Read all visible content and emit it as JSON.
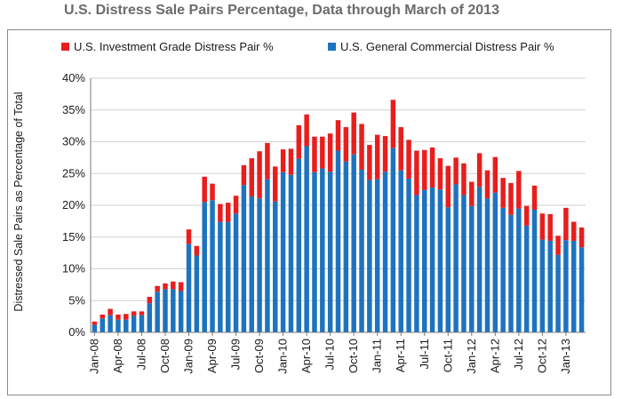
{
  "chart_data": {
    "type": "bar",
    "stacked": true,
    "title": "U.S. Distress Sale Pairs Percentage, Data through March of 2013",
    "ylabel": "Distressed Sale Pairs as Percentage of Total",
    "xlabel": "",
    "ylim": [
      0,
      40
    ],
    "yticks": [
      "0%",
      "5%",
      "10%",
      "15%",
      "20%",
      "25%",
      "30%",
      "35%",
      "40%"
    ],
    "xtick_labels": [
      "Jan-08",
      "Apr-08",
      "Jul-08",
      "Oct-08",
      "Jan-09",
      "Apr-09",
      "Jul-09",
      "Oct-09",
      "Jan-10",
      "Apr-10",
      "Jul-10",
      "Oct-10",
      "Jan-11",
      "Apr-11",
      "Jul-11",
      "Oct-11",
      "Jan-12",
      "Apr-12",
      "Jul-12",
      "Oct-12",
      "Jan-13"
    ],
    "grid": true,
    "legend_position": "top",
    "series": [
      {
        "name": "U.S. General Commercial Distress Pair %",
        "color": "#1e73be",
        "values": [
          1.2,
          2.2,
          2.7,
          2.0,
          2.0,
          2.6,
          2.7,
          4.6,
          6.4,
          6.8,
          6.8,
          6.5,
          13.9,
          12.1,
          20.5,
          20.8,
          17.4,
          17.4,
          18.7,
          23.2,
          21.4,
          21.1,
          24.1,
          20.6,
          25.2,
          24.8,
          27.3,
          29.3,
          25.2,
          25.8,
          25.3,
          28.6,
          26.9,
          28.0,
          25.6,
          24.0,
          24.1,
          25.3,
          29.0,
          25.5,
          24.2,
          21.6,
          22.4,
          22.8,
          22.5,
          19.7,
          23.3,
          21.6,
          19.9,
          22.9,
          21.1,
          22.0,
          19.6,
          18.5,
          19.5,
          16.8,
          19.3,
          14.6,
          14.4,
          12.2,
          14.5,
          14.4,
          13.4
        ]
      },
      {
        "name": "U.S. Investment Grade Distress Pair %",
        "color": "#e81e1e",
        "values": [
          0.5,
          0.6,
          1.0,
          0.8,
          0.9,
          0.7,
          0.6,
          1.0,
          0.9,
          0.9,
          1.2,
          1.4,
          2.3,
          1.5,
          4.0,
          2.6,
          2.8,
          3.0,
          2.8,
          3.1,
          6.0,
          7.4,
          5.7,
          5.5,
          3.6,
          4.1,
          5.3,
          5.0,
          5.6,
          5.0,
          6.0,
          4.8,
          5.4,
          6.6,
          7.2,
          5.5,
          7.0,
          5.6,
          7.6,
          6.8,
          6.1,
          7.0,
          6.3,
          6.3,
          4.9,
          6.5,
          4.2,
          5.0,
          3.8,
          5.3,
          4.4,
          5.6,
          4.7,
          5.0,
          5.9,
          3.1,
          3.8,
          4.1,
          4.2,
          3.0,
          5.1,
          3.0,
          3.1
        ]
      }
    ]
  }
}
